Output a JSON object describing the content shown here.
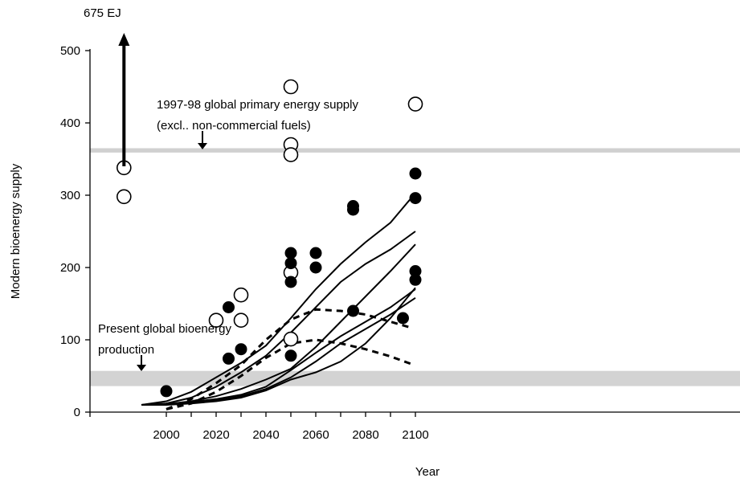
{
  "chart_data": {
    "type": "scatter",
    "title": "",
    "xlabel": "Year",
    "ylabel": "Modern bioenergy supply",
    "xlim": [
      1980,
      2110
    ],
    "ylim": [
      0,
      500
    ],
    "xticks": [
      2000,
      2020,
      2040,
      2060,
      2080,
      2100
    ],
    "yticks": [
      0,
      100,
      200,
      300,
      400,
      500
    ],
    "grid": false,
    "annotations": {
      "top_value": "675 EJ",
      "primary_supply_line1": "1997-98 global primary energy supply",
      "primary_supply_line2": "(excl.. non-commercial fuels)",
      "present_line1": "Present global bioenergy",
      "present_line2": "production"
    },
    "reference_bands": [
      {
        "y": 362,
        "y_min": 359,
        "y_max": 365,
        "color": "#d0d0d0"
      },
      {
        "y": 46,
        "y_min": 36,
        "y_max": 57,
        "color": "#d3d3d3"
      }
    ],
    "range_arrow": {
      "x": 1983,
      "from": 340,
      "to": 520
    },
    "open_circles": [
      [
        1983,
        338
      ],
      [
        1983,
        298
      ],
      [
        2020,
        127
      ],
      [
        2030,
        162
      ],
      [
        2030,
        127
      ],
      [
        2050,
        450
      ],
      [
        2050,
        370
      ],
      [
        2050,
        356
      ],
      [
        2050,
        193
      ],
      [
        2050,
        101
      ],
      [
        2100,
        426
      ]
    ],
    "filled_circles": [
      [
        2000,
        29
      ],
      [
        2025,
        145
      ],
      [
        2025,
        74
      ],
      [
        2030,
        87
      ],
      [
        2050,
        220
      ],
      [
        2050,
        206
      ],
      [
        2050,
        180
      ],
      [
        2050,
        78
      ],
      [
        2060,
        220
      ],
      [
        2060,
        200
      ],
      [
        2075,
        285
      ],
      [
        2075,
        280
      ],
      [
        2075,
        140
      ],
      [
        2095,
        130
      ],
      [
        2100,
        330
      ],
      [
        2100,
        296
      ],
      [
        2100,
        195
      ],
      [
        2100,
        183
      ]
    ],
    "solid_lines": [
      [
        [
          1990,
          10
        ],
        [
          2000,
          15
        ],
        [
          2010,
          28
        ],
        [
          2020,
          48
        ],
        [
          2030,
          68
        ],
        [
          2040,
          92
        ],
        [
          2050,
          130
        ],
        [
          2060,
          170
        ],
        [
          2070,
          205
        ],
        [
          2080,
          235
        ],
        [
          2090,
          262
        ],
        [
          2100,
          303
        ]
      ],
      [
        [
          1990,
          10
        ],
        [
          2000,
          12
        ],
        [
          2010,
          20
        ],
        [
          2020,
          35
        ],
        [
          2030,
          55
        ],
        [
          2040,
          78
        ],
        [
          2050,
          110
        ],
        [
          2060,
          145
        ],
        [
          2070,
          180
        ],
        [
          2080,
          205
        ],
        [
          2090,
          225
        ],
        [
          2100,
          250
        ]
      ],
      [
        [
          1990,
          10
        ],
        [
          2000,
          11
        ],
        [
          2010,
          15
        ],
        [
          2020,
          22
        ],
        [
          2030,
          32
        ],
        [
          2040,
          45
        ],
        [
          2050,
          60
        ],
        [
          2060,
          90
        ],
        [
          2070,
          125
        ],
        [
          2080,
          160
        ],
        [
          2090,
          195
        ],
        [
          2100,
          232
        ]
      ],
      [
        [
          1990,
          10
        ],
        [
          2000,
          11
        ],
        [
          2010,
          14
        ],
        [
          2020,
          18
        ],
        [
          2030,
          24
        ],
        [
          2040,
          35
        ],
        [
          2050,
          58
        ],
        [
          2060,
          82
        ],
        [
          2070,
          105
        ],
        [
          2080,
          125
        ],
        [
          2090,
          145
        ],
        [
          2100,
          170
        ]
      ],
      [
        [
          1990,
          10
        ],
        [
          2000,
          11
        ],
        [
          2010,
          13
        ],
        [
          2020,
          16
        ],
        [
          2030,
          22
        ],
        [
          2040,
          32
        ],
        [
          2050,
          48
        ],
        [
          2060,
          70
        ],
        [
          2070,
          95
        ],
        [
          2080,
          115
        ],
        [
          2090,
          135
        ],
        [
          2100,
          158
        ]
      ],
      [
        [
          1990,
          10
        ],
        [
          2000,
          10
        ],
        [
          2010,
          12
        ],
        [
          2020,
          15
        ],
        [
          2030,
          20
        ],
        [
          2040,
          30
        ],
        [
          2050,
          45
        ],
        [
          2060,
          55
        ],
        [
          2070,
          70
        ],
        [
          2080,
          95
        ],
        [
          2090,
          130
        ],
        [
          2100,
          172
        ]
      ]
    ],
    "dashed_lines": [
      [
        [
          2000,
          4
        ],
        [
          2010,
          18
        ],
        [
          2020,
          40
        ],
        [
          2030,
          65
        ],
        [
          2040,
          100
        ],
        [
          2050,
          128
        ],
        [
          2060,
          142
        ],
        [
          2070,
          140
        ],
        [
          2080,
          135
        ],
        [
          2090,
          125
        ],
        [
          2098,
          117
        ]
      ],
      [
        [
          2000,
          4
        ],
        [
          2010,
          12
        ],
        [
          2020,
          28
        ],
        [
          2030,
          50
        ],
        [
          2040,
          75
        ],
        [
          2050,
          95
        ],
        [
          2060,
          100
        ],
        [
          2070,
          95
        ],
        [
          2080,
          87
        ],
        [
          2090,
          77
        ],
        [
          2098,
          67
        ]
      ]
    ]
  }
}
